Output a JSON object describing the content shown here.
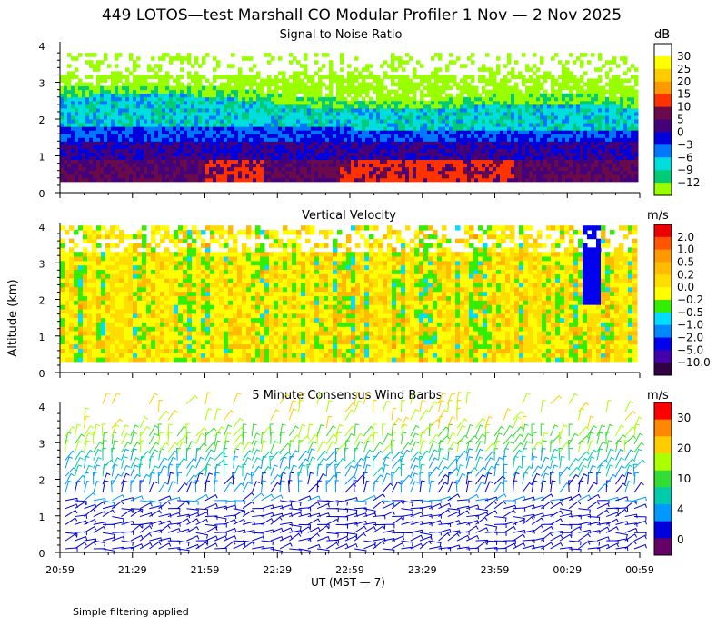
{
  "title": "449 LOTOS—test Marshall CO Modular Profiler  1 Nov —  2 Nov 2025",
  "footnote": "Simple filtering applied",
  "x_axis": {
    "label": "UT  (MST — 7)",
    "ticks": [
      "20:59",
      "21:29",
      "21:59",
      "22:29",
      "22:59",
      "23:29",
      "23:59",
      "00:29",
      "00:59"
    ]
  },
  "y_axis": {
    "label": "Altitude (km)",
    "range": [
      0,
      4.1
    ],
    "ticks": [
      "0",
      "1",
      "2",
      "3",
      "4"
    ]
  },
  "chart_data": [
    {
      "type": "heatmap",
      "title": "Signal to Noise Ratio",
      "unit": "dB",
      "colorbar": {
        "labels": [
          "30",
          "25",
          "20",
          "15",
          "10",
          "5",
          "0",
          "−3",
          "−6",
          "−9",
          "−12"
        ],
        "colors": [
          "#ffffff",
          "#ffff00",
          "#ffcc00",
          "#ff9900",
          "#ff3300",
          "#6a0a4a",
          "#44007a",
          "#0000dd",
          "#0077ff",
          "#00dddd",
          "#00cc77",
          "#99ff00"
        ]
      },
      "data_top_km": 2.7,
      "sparse_top_km": 4.1
    },
    {
      "type": "heatmap",
      "title": "Vertical Velocity",
      "unit": "m/s",
      "colorbar": {
        "labels": [
          "2.0",
          "1.0",
          "0.5",
          "0.2",
          "0.0",
          "−0.2",
          "−0.5",
          "−1.0",
          "−2.0",
          "−5.0",
          "−10.0"
        ],
        "colors": [
          "#ee0000",
          "#ff5500",
          "#ff9900",
          "#ffbb00",
          "#ffdd00",
          "#ffff00",
          "#33ee00",
          "#00ddff",
          "#0088ff",
          "#0000ee",
          "#4400aa",
          "#330044"
        ]
      },
      "data_top_km": 4.0
    },
    {
      "type": "scatter",
      "title": "5 Minute Consensus Wind Barbs",
      "unit": "m/s",
      "colorbar": {
        "labels": [
          "30",
          "20",
          "10",
          "4",
          "0"
        ],
        "colors": [
          "#ff0000",
          "#ff8800",
          "#ffcc00",
          "#aaff00",
          "#33dd33",
          "#00ccaa",
          "#0099ff",
          "#0000dd",
          "#660066"
        ]
      },
      "data_top_km": 4.2
    }
  ]
}
